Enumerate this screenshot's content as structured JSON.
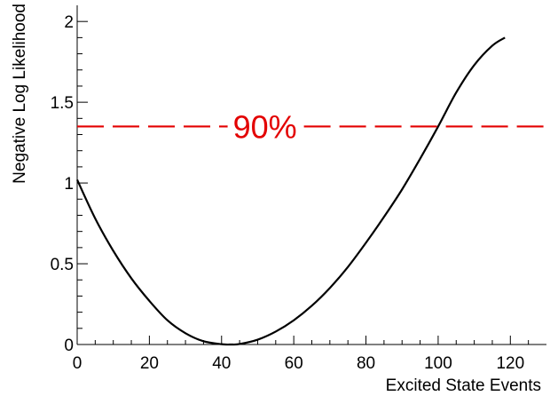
{
  "chart_data": {
    "type": "line",
    "title": "",
    "xlabel": "Excited State Events",
    "ylabel": "Negative Log Likelihood",
    "xlim": [
      0,
      130
    ],
    "ylim": [
      0,
      2.1
    ],
    "x_ticks": [
      "0",
      "20",
      "40",
      "60",
      "80",
      "100",
      "120"
    ],
    "y_ticks": [
      "0",
      "0.5",
      "1",
      "1.5",
      "2"
    ],
    "grid": false,
    "series": [
      {
        "x": [
          0,
          5,
          10,
          15,
          20,
          25,
          30,
          35,
          40,
          42.6,
          45,
          50,
          55,
          60,
          65,
          70,
          75,
          80,
          85,
          90,
          95,
          100,
          105,
          110,
          115,
          118.5
        ],
        "y": [
          1.02,
          0.78,
          0.58,
          0.41,
          0.27,
          0.15,
          0.07,
          0.02,
          0.002,
          0.0,
          0.003,
          0.03,
          0.08,
          0.15,
          0.24,
          0.35,
          0.48,
          0.63,
          0.79,
          0.96,
          1.15,
          1.35,
          1.56,
          1.73,
          1.85,
          1.9
        ]
      }
    ],
    "threshold": {
      "y": 1.35,
      "label": "90%",
      "color": "#e30000"
    }
  }
}
